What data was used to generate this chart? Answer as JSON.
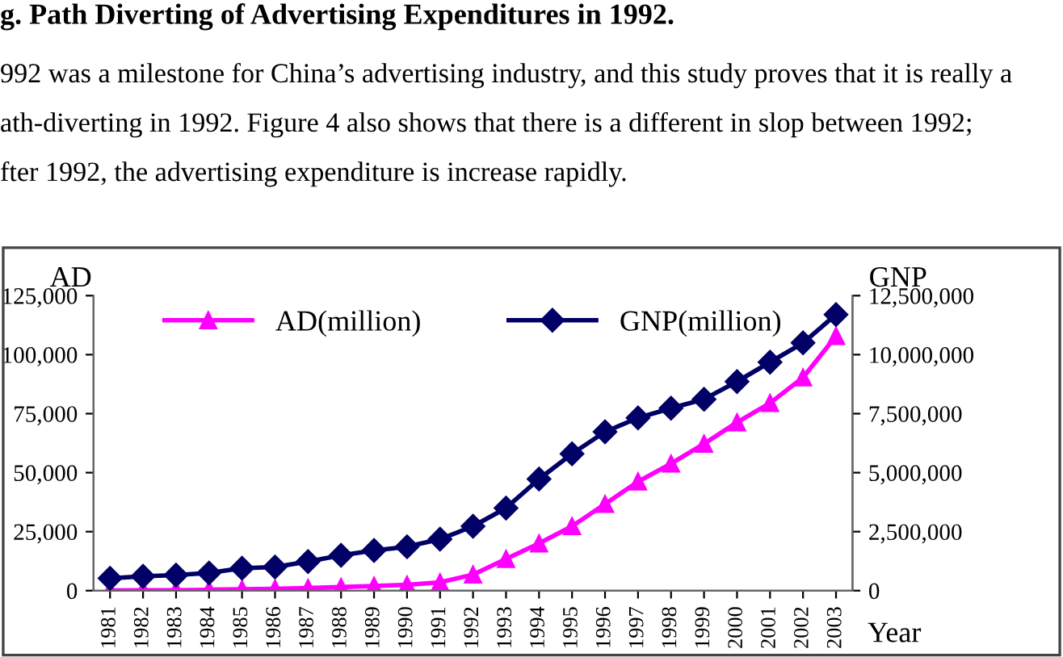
{
  "chart_data": {
    "type": "line",
    "title": "g. Path Diverting of Advertising Expenditures in 1992.",
    "annotations": [
      "992 was a milestone for China’s advertising industry, and this study proves that it is really a",
      "ath-diverting in 1992. Figure 4 also shows that there is a different in slop between 1992;",
      "fter 1992, the advertising expenditure is increase rapidly."
    ],
    "ylabel": "AD",
    "y2label": "GNP",
    "xlabel": "Year",
    "categories": [
      "1981",
      "1982",
      "1983",
      "1984",
      "1985",
      "1986",
      "1987",
      "1988",
      "1989",
      "1990",
      "1991",
      "1992",
      "1993",
      "1994",
      "1995",
      "1996",
      "1997",
      "1998",
      "1999",
      "2000",
      "2001",
      "2002",
      "2003"
    ],
    "series": [
      {
        "name": "AD(million)",
        "color": "#ff00ff",
        "marker": "triangle",
        "values": [
          100,
          200,
          200,
          400,
          600,
          800,
          1100,
          1500,
          2000,
          2500,
          3500,
          6800,
          13400,
          20000,
          27300,
          36700,
          46200,
          53800,
          62200,
          71300,
          79500,
          90300,
          107900
        ]
      },
      {
        "name": "GNP(million)",
        "color": "#000066",
        "marker": "diamond",
        "axis": "y2",
        "values": [
          520000,
          610000,
          660000,
          750000,
          950000,
          1000000,
          1230000,
          1500000,
          1700000,
          1860000,
          2180000,
          2730000,
          3500000,
          4730000,
          5800000,
          6730000,
          7320000,
          7730000,
          8110000,
          8860000,
          9680000,
          10500000,
          11700000
        ]
      }
    ],
    "ylim": [
      0,
      125000
    ],
    "yticks": [
      {
        "value": 0,
        "label": "0"
      },
      {
        "value": 25000,
        "label": "25,000"
      },
      {
        "value": 50000,
        "label": "50,000"
      },
      {
        "value": 75000,
        "label": "75,000"
      },
      {
        "value": 100000,
        "label": "100,000"
      },
      {
        "value": 125000,
        "label": "125,000"
      }
    ],
    "y2lim": [
      0,
      12500000
    ],
    "y2ticks": [
      {
        "value": 0,
        "label": "0"
      },
      {
        "value": 2500000,
        "label": "2,500,000"
      },
      {
        "value": 5000000,
        "label": "5,000,000"
      },
      {
        "value": 7500000,
        "label": "7,500,000"
      },
      {
        "value": 10000000,
        "label": "10,000,000"
      },
      {
        "value": 12500000,
        "label": "12,500,000"
      }
    ],
    "legend": "top",
    "grid": false
  }
}
